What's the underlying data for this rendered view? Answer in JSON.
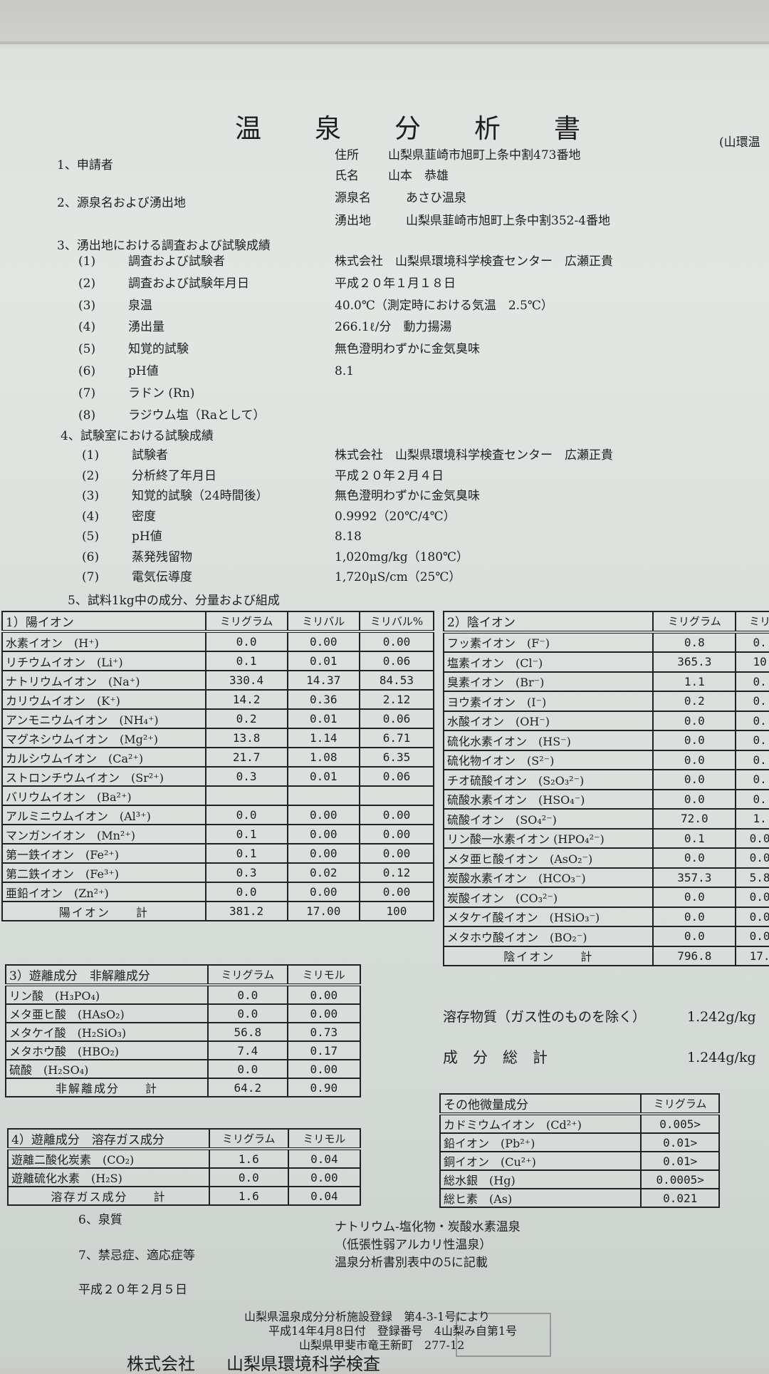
{
  "header": {
    "title_chars": [
      "温",
      "泉",
      "分",
      "析",
      "書"
    ],
    "corner_note": "(山環温"
  },
  "sections": {
    "s1_label": "1、申請者",
    "s1_addr_label": "住所",
    "s1_addr": "山梨県韮崎市旭町上条中割473番地",
    "s1_name_label": "氏名",
    "s1_name": "山本　恭雄",
    "s2_label": "2、源泉名および湧出地",
    "s2_src_label": "源泉名",
    "s2_src": "あさひ温泉",
    "s2_loc_label": "湧出地",
    "s2_loc": "山梨県韮崎市旭町上条中割352-4番地",
    "s3_label": "3、湧出地における調査および試験成績",
    "s3_items": [
      {
        "no": "(1)",
        "label": "調査および試験者",
        "value": "株式会社　山梨県環境科学検査センター　広瀬正貴"
      },
      {
        "no": "(2)",
        "label": "調査および試験年月日",
        "value": "平成２０年１月１８日"
      },
      {
        "no": "(3)",
        "label": "泉温",
        "value": "40.0℃（測定時における気温　2.5℃）"
      },
      {
        "no": "(4)",
        "label": "湧出量",
        "value": "266.1ℓ/分　動力揚湯"
      },
      {
        "no": "(5)",
        "label": "知覚的試験",
        "value": "無色澄明わずかに金気臭味"
      },
      {
        "no": "(6)",
        "label": "pH値",
        "value": "8.1"
      },
      {
        "no": "(7)",
        "label": "ラドン (Rn)",
        "value": ""
      },
      {
        "no": "(8)",
        "label": "ラジウム塩（Raとして）",
        "value": ""
      }
    ],
    "s4_label": "4、試験室における試験成績",
    "s4_items": [
      {
        "no": "(1)",
        "label": "試験者",
        "value": "株式会社　山梨県環境科学検査センター　広瀬正貴"
      },
      {
        "no": "(2)",
        "label": "分析終了年月日",
        "value": "平成２０年２月４日"
      },
      {
        "no": "(3)",
        "label": "知覚的試験（24時間後）",
        "value": "無色澄明わずかに金気臭味"
      },
      {
        "no": "(4)",
        "label": "密度",
        "value": "0.9992（20℃/4℃）"
      },
      {
        "no": "(5)",
        "label": "pH値",
        "value": "8.18"
      },
      {
        "no": "(6)",
        "label": "蒸発残留物",
        "value": "1,020mg/kg（180℃）"
      },
      {
        "no": "(7)",
        "label": "電気伝導度",
        "value": "1,720μS/cm（25℃）"
      }
    ],
    "s5_label": "5、試料1kg中の成分、分量および組成"
  },
  "cation_table": {
    "headers": [
      "1）陽イオン",
      "ミリグラム",
      "ミリバル",
      "ミリバル%"
    ],
    "rows": [
      [
        "水素イオン　(H⁺)",
        "0.0",
        "0.00",
        "0.00"
      ],
      [
        "リチウムイオン　(Li⁺)",
        "0.1",
        "0.01",
        "0.06"
      ],
      [
        "ナトリウムイオン　(Na⁺)",
        "330.4",
        "14.37",
        "84.53"
      ],
      [
        "カリウムイオン　(K⁺)",
        "14.2",
        "0.36",
        "2.12"
      ],
      [
        "アンモニウムイオン　(NH₄⁺)",
        "0.2",
        "0.01",
        "0.06"
      ],
      [
        "マグネシウムイオン　(Mg²⁺)",
        "13.8",
        "1.14",
        "6.71"
      ],
      [
        "カルシウムイオン　(Ca²⁺)",
        "21.7",
        "1.08",
        "6.35"
      ],
      [
        "ストロンチウムイオン　(Sr²⁺)",
        "0.3",
        "0.01",
        "0.06"
      ],
      [
        "バリウムイオン　(Ba²⁺)",
        "",
        "",
        ""
      ],
      [
        "アルミニウムイオン　(Al³⁺)",
        "0.0",
        "0.00",
        "0.00"
      ],
      [
        "マンガンイオン　(Mn²⁺)",
        "0.1",
        "0.00",
        "0.00"
      ],
      [
        "第一鉄イオン　(Fe²⁺)",
        "0.1",
        "0.00",
        "0.00"
      ],
      [
        "第二鉄イオン　(Fe³⁺)",
        "0.3",
        "0.02",
        "0.12"
      ],
      [
        "亜鉛イオン　(Zn²⁺)",
        "0.0",
        "0.00",
        "0.00"
      ]
    ],
    "total": [
      "陽イオン　　計",
      "381.2",
      "17.00",
      "100"
    ]
  },
  "anion_table": {
    "headers": [
      "2）陰イオン",
      "ミリグラム",
      "ミリ"
    ],
    "rows": [
      [
        "フッ素イオン　(F⁻)",
        "0.8",
        "0."
      ],
      [
        "塩素イオン　(Cl⁻)",
        "365.3",
        "10"
      ],
      [
        "臭素イオン　(Br⁻)",
        "1.1",
        "0."
      ],
      [
        "ヨウ素イオン　(I⁻)",
        "0.2",
        "0."
      ],
      [
        "水酸イオン　(OH⁻)",
        "0.0",
        "0."
      ],
      [
        "硫化水素イオン　(HS⁻)",
        "0.0",
        "0."
      ],
      [
        "硫化物イオン　(S²⁻)",
        "0.0",
        "0."
      ],
      [
        "チオ硫酸イオン　(S₂O₃²⁻)",
        "0.0",
        "0."
      ],
      [
        "硫酸水素イオン　(HSO₄⁻)",
        "0.0",
        "0."
      ],
      [
        "硫酸イオン　(SO₄²⁻)",
        "72.0",
        "1."
      ],
      [
        "リン酸一水素イオン (HPO₄²⁻)",
        "0.1",
        "0.0"
      ],
      [
        "メタ亜ヒ酸イオン　(AsO₂⁻)",
        "0.0",
        "0.0"
      ],
      [
        "炭酸水素イオン　(HCO₃⁻)",
        "357.3",
        "5.8"
      ],
      [
        "炭酸イオン　(CO₃²⁻)",
        "0.0",
        "0.0"
      ],
      [
        "メタケイ酸イオン　(HSiO₃⁻)",
        "0.0",
        "0.0"
      ],
      [
        "メタホウ酸イオン　(BO₂⁻)",
        "0.0",
        "0.0"
      ]
    ],
    "total": [
      "陰イオン　　計",
      "796.8",
      "17."
    ]
  },
  "nondissociated_table": {
    "headers": [
      "3）遊離成分　非解離成分",
      "ミリグラム",
      "ミリモル"
    ],
    "rows": [
      [
        "リン酸　(H₃PO₄)",
        "0.0",
        "0.00"
      ],
      [
        "メタ亜ヒ酸　(HAsO₂)",
        "0.0",
        "0.00"
      ],
      [
        "メタケイ酸　(H₂SiO₃)",
        "56.8",
        "0.73"
      ],
      [
        "メタホウ酸　(HBO₂)",
        "7.4",
        "0.17"
      ],
      [
        "硫酸　(H₂SO₄)",
        "0.0",
        "0.00"
      ]
    ],
    "total": [
      "非解離成分　　計",
      "64.2",
      "0.90"
    ]
  },
  "gas_table": {
    "headers": [
      "4）遊離成分　溶存ガス成分",
      "ミリグラム",
      "ミリモル"
    ],
    "rows": [
      [
        "遊離二酸化炭素　(CO₂)",
        "1.6",
        "0.04"
      ],
      [
        "遊離硫化水素　(H₂S)",
        "0.0",
        "0.00"
      ]
    ],
    "total": [
      "溶存ガス成分　　計",
      "1.6",
      "0.04"
    ]
  },
  "totals": {
    "dissolved_label": "溶存物質（ガス性のものを除く）",
    "dissolved_value": "1.242g/kg",
    "grand_label": "成　分　総　計",
    "grand_value": "1.244g/kg"
  },
  "trace_table": {
    "headers": [
      "その他微量成分",
      "ミリグラム"
    ],
    "rows": [
      [
        "カドミウムイオン　(Cd²⁺)",
        "0.005>"
      ],
      [
        "鉛イオン　(Pb²⁺)",
        "0.01>"
      ],
      [
        "銅イオン　(Cu²⁺)",
        "0.01>"
      ],
      [
        "総水銀　(Hg)",
        "0.0005>"
      ],
      [
        "総ヒ素　(As)",
        "0.021"
      ]
    ]
  },
  "footer": {
    "s6_label": "6、泉質",
    "quality_line1": "ナトリウム-塩化物・炭酸水素温泉",
    "quality_line2": "（低張性弱アルカリ性温泉）",
    "quality_line3": "温泉分析書別表中の5に記載",
    "s7_label": "7、禁忌症、適応症等",
    "date": "平成２０年２月５日",
    "reg_line1": "山梨県温泉成分分析施設登録　第4-3-1号により",
    "reg_line2": "平成14年4月8日付　登録番号　4山梨み自第1号",
    "reg_line3": "山梨県甲斐市竜王新町　277-12",
    "company_label": "株式会社",
    "company_name": "山梨県環境科学検査"
  }
}
